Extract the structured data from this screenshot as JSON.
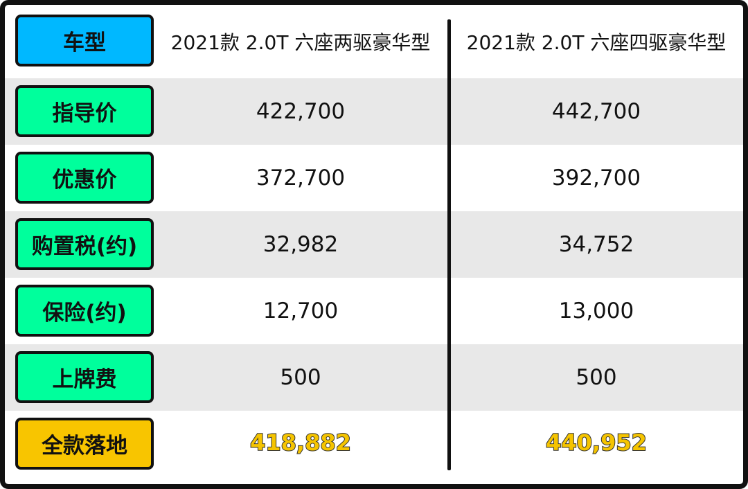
{
  "colors": {
    "header_label": "#00b8ff",
    "row_label": "#00ff9c",
    "total_label": "#f8c500",
    "total_value": "#f5c400",
    "stripe": "#e8e8e8"
  },
  "header": {
    "label": "车型",
    "col1": "2021款 2.0T 六座两驱豪华型",
    "col2": "2021款 2.0T 六座四驱豪华型"
  },
  "rows": [
    {
      "label": "指导价",
      "col1": "422,700",
      "col2": "442,700"
    },
    {
      "label": "优惠价",
      "col1": "372,700",
      "col2": "392,700"
    },
    {
      "label": "购置税(约)",
      "col1": "32,982",
      "col2": "34,752"
    },
    {
      "label": "保险(约)",
      "col1": "12,700",
      "col2": "13,000"
    },
    {
      "label": "上牌费",
      "col1": "500",
      "col2": "500"
    }
  ],
  "total": {
    "label": "全款落地",
    "col1": "418,882",
    "col2": "440,952"
  }
}
